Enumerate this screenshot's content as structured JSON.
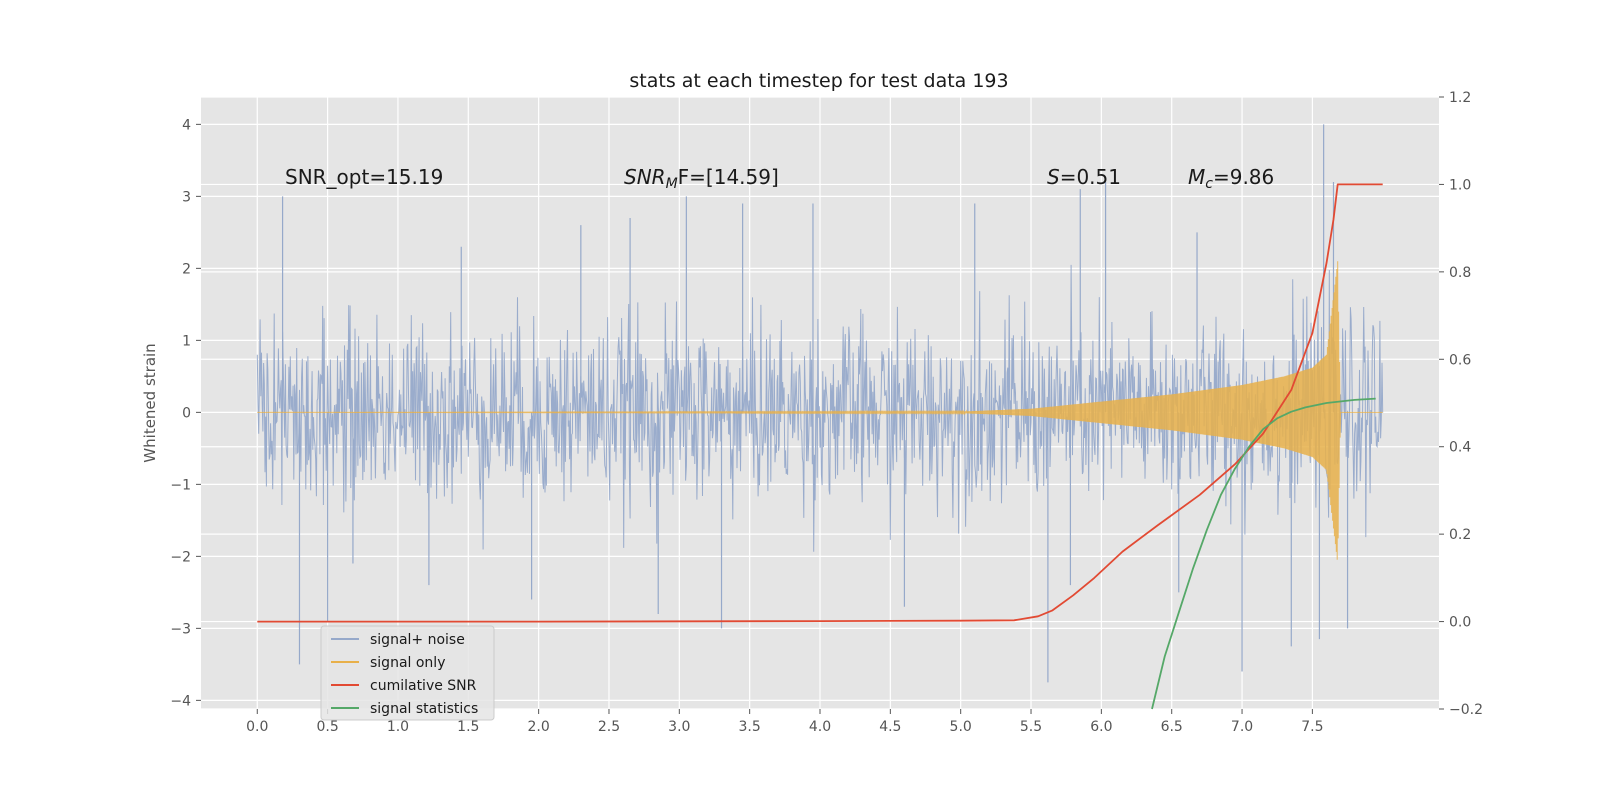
{
  "chart_data": {
    "type": "line",
    "title": "stats at each timestep for test data 193",
    "ylabel": "Whitened strain",
    "xlim": [
      -0.4,
      8.4
    ],
    "ylim": [
      -4.12,
      4.38
    ],
    "y2lim": [
      -0.2,
      1.2
    ],
    "grid": true,
    "x_ticks": [
      "0.0",
      "0.5",
      "1.0",
      "1.5",
      "2.0",
      "2.5",
      "3.0",
      "3.5",
      "4.0",
      "4.5",
      "5.0",
      "5.5",
      "6.0",
      "6.5",
      "7.0",
      "7.5"
    ],
    "y_ticks": [
      "−4",
      "−3",
      "−2",
      "−1",
      "0",
      "1",
      "2",
      "3",
      "4"
    ],
    "y2_ticks": [
      "−0.2",
      "0.0",
      "0.2",
      "0.4",
      "0.6",
      "0.8",
      "1.0",
      "1.2"
    ],
    "annotations": {
      "snr_opt": "SNR_opt=15.19",
      "snr_mf_sym": "SNR",
      "snr_mf_sub": "M",
      "snr_mf_rest": "F=[14.59]",
      "s_sym": "S",
      "s_rest": "=0.51",
      "mc_sym": "M",
      "mc_sub": "c",
      "mc_rest": "=9.86"
    },
    "legend_position": "lower-left",
    "series": [
      {
        "name": "signal+ noise",
        "color": "#96A9CA",
        "axis": "left",
        "x_range": [
          0.0,
          8.0
        ],
        "envelope_typical": [
          -1.6,
          1.7
        ],
        "spikes": [
          [
            0.18,
            3.0
          ],
          [
            0.3,
            -3.5
          ],
          [
            0.5,
            -2.9
          ],
          [
            0.68,
            -2.1
          ],
          [
            1.22,
            -2.4
          ],
          [
            1.45,
            2.3
          ],
          [
            1.95,
            -2.6
          ],
          [
            2.3,
            2.6
          ],
          [
            2.65,
            2.7
          ],
          [
            2.85,
            -2.8
          ],
          [
            3.05,
            3.0
          ],
          [
            3.3,
            -3.0
          ],
          [
            3.45,
            2.9
          ],
          [
            3.95,
            2.9
          ],
          [
            4.6,
            -2.7
          ],
          [
            5.1,
            2.9
          ],
          [
            5.62,
            -3.75
          ],
          [
            5.78,
            -2.4
          ],
          [
            5.85,
            3.1
          ],
          [
            6.03,
            3.2
          ],
          [
            6.55,
            -2.5
          ],
          [
            6.68,
            2.5
          ],
          [
            7.0,
            -3.6
          ],
          [
            7.35,
            -3.25
          ],
          [
            7.55,
            -3.15
          ],
          [
            7.58,
            4.0
          ],
          [
            7.65,
            3.2
          ],
          [
            7.75,
            -3.0
          ]
        ]
      },
      {
        "name": "signal only",
        "color": "#E8B04A",
        "axis": "left",
        "points": [
          [
            0.0,
            0.0
          ],
          [
            5.0,
            0.01
          ],
          [
            5.5,
            0.05
          ],
          [
            6.0,
            0.15
          ],
          [
            6.5,
            0.25
          ],
          [
            7.0,
            0.38
          ],
          [
            7.3,
            0.5
          ],
          [
            7.5,
            0.62
          ],
          [
            7.6,
            0.8
          ],
          [
            7.68,
            2.1
          ],
          [
            7.7,
            0.0
          ],
          [
            8.0,
            0.0
          ]
        ]
      },
      {
        "name": "cumilative SNR",
        "color": "#E24A33",
        "axis": "right",
        "points": [
          [
            0.0,
            0.0
          ],
          [
            2.0,
            0.0
          ],
          [
            4.0,
            0.001
          ],
          [
            5.0,
            0.002
          ],
          [
            5.38,
            0.003
          ],
          [
            5.55,
            0.012
          ],
          [
            5.65,
            0.025
          ],
          [
            5.8,
            0.06
          ],
          [
            5.95,
            0.1
          ],
          [
            6.15,
            0.16
          ],
          [
            6.4,
            0.22
          ],
          [
            6.7,
            0.29
          ],
          [
            6.95,
            0.36
          ],
          [
            7.15,
            0.43
          ],
          [
            7.35,
            0.53
          ],
          [
            7.5,
            0.66
          ],
          [
            7.6,
            0.82
          ],
          [
            7.65,
            0.92
          ],
          [
            7.68,
            1.0
          ],
          [
            8.0,
            1.0
          ]
        ]
      },
      {
        "name": "signal statistics",
        "color": "#55A868",
        "axis": "right",
        "points": [
          [
            6.36,
            -0.2
          ],
          [
            6.45,
            -0.08
          ],
          [
            6.55,
            0.02
          ],
          [
            6.65,
            0.12
          ],
          [
            6.75,
            0.21
          ],
          [
            6.85,
            0.29
          ],
          [
            6.95,
            0.35
          ],
          [
            7.05,
            0.4
          ],
          [
            7.15,
            0.44
          ],
          [
            7.25,
            0.465
          ],
          [
            7.35,
            0.48
          ],
          [
            7.45,
            0.49
          ],
          [
            7.6,
            0.5
          ],
          [
            7.8,
            0.507
          ],
          [
            7.95,
            0.51
          ]
        ]
      }
    ]
  }
}
